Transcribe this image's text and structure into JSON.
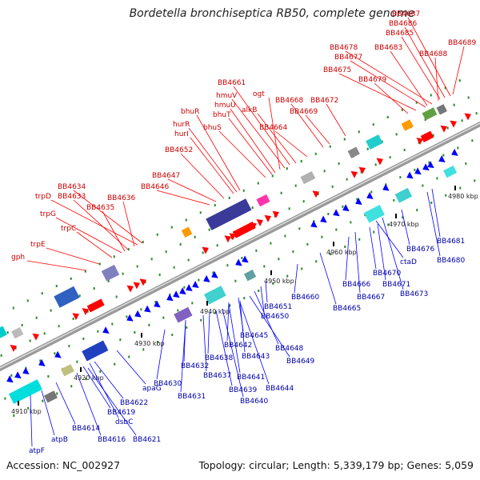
{
  "title": "Bordetella bronchiseptica RB50, complete genome",
  "footer": {
    "accession": "Accession: NC_002927",
    "stats": "Topology: circular; Length: 5,339,179 bp; Genes: 5,059"
  },
  "scale_labels": [
    "4910 kbp",
    "4920 kbp",
    "4930 kbp",
    "4940 kbp",
    "4950 kbp",
    "4960 kbp",
    "4970 kbp",
    "4980 kbp"
  ],
  "colors": {
    "upper_labels": "#cc0000",
    "lower_labels": "#0000aa",
    "forward_genes": "#ff0000",
    "reverse_genes": "#0000ff",
    "backbone": "#999999"
  },
  "upper_labels": [
    {
      "id": "BB4687"
    },
    {
      "id": "BB4686"
    },
    {
      "id": "BB4685"
    },
    {
      "id": "BB4689"
    },
    {
      "id": "BB4678"
    },
    {
      "id": "BB4683"
    },
    {
      "id": "BB4688"
    },
    {
      "id": "BB4677"
    },
    {
      "id": "BB4675"
    },
    {
      "id": "BB4679"
    },
    {
      "id": "BB4661"
    },
    {
      "id": "hmuV"
    },
    {
      "id": "ogt"
    },
    {
      "id": "BB4668"
    },
    {
      "id": "BB4672"
    },
    {
      "id": "hmuU"
    },
    {
      "id": "bhuR"
    },
    {
      "id": "alkB"
    },
    {
      "id": "BB4669"
    },
    {
      "id": "bhuT"
    },
    {
      "id": "hurR"
    },
    {
      "id": "bhuS"
    },
    {
      "id": "BB4664"
    },
    {
      "id": "hurI"
    },
    {
      "id": "BB4652"
    },
    {
      "id": "BB4647"
    },
    {
      "id": "BB4646"
    },
    {
      "id": "BB4634"
    },
    {
      "id": "trpD"
    },
    {
      "id": "BB4633"
    },
    {
      "id": "BB4636"
    },
    {
      "id": "BB4635"
    },
    {
      "id": "trpG"
    },
    {
      "id": "trpC"
    },
    {
      "id": "trpE"
    },
    {
      "id": "gph"
    }
  ],
  "lower_labels": [
    {
      "id": "BB4681"
    },
    {
      "id": "BB4680"
    },
    {
      "id": "BB4676"
    },
    {
      "id": "ctaD"
    },
    {
      "id": "BB4670"
    },
    {
      "id": "BB4671"
    },
    {
      "id": "BB4673"
    },
    {
      "id": "BB4666"
    },
    {
      "id": "BB4667"
    },
    {
      "id": "BB4660"
    },
    {
      "id": "BB4665"
    },
    {
      "id": "BB4651"
    },
    {
      "id": "BB4650"
    },
    {
      "id": "BB4645"
    },
    {
      "id": "BB4648"
    },
    {
      "id": "BB4642"
    },
    {
      "id": "BB4643"
    },
    {
      "id": "BB4649"
    },
    {
      "id": "BB4638"
    },
    {
      "id": "BB4641"
    },
    {
      "id": "BB4637"
    },
    {
      "id": "BB4644"
    },
    {
      "id": "BB4632"
    },
    {
      "id": "BB4639"
    },
    {
      "id": "BB4640"
    },
    {
      "id": "BB4630"
    },
    {
      "id": "BB4631"
    },
    {
      "id": "apaG"
    },
    {
      "id": "BB4622"
    },
    {
      "id": "BB4619"
    },
    {
      "id": "dsbC"
    },
    {
      "id": "BB4614"
    },
    {
      "id": "BB4616"
    },
    {
      "id": "BB4621"
    },
    {
      "id": "atpB"
    },
    {
      "id": "atpF"
    }
  ]
}
